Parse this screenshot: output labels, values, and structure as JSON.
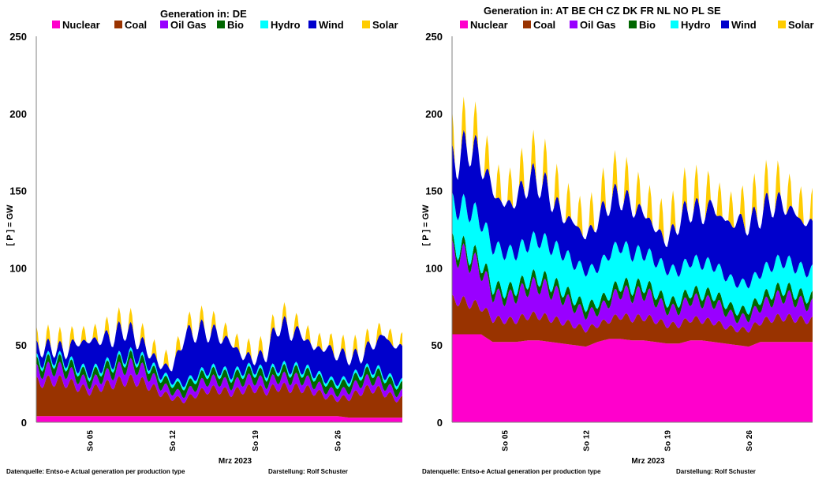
{
  "charts": [
    {
      "title": "Generation in: DE",
      "ylabel": "[ P ] = GW",
      "xlabel": "Mrz 2023",
      "xticks": [
        "So 05",
        "So 12",
        "So 19",
        "So 26"
      ],
      "footer_source": "Datenquelle: Entso-e  Actual generation per production type",
      "footer_author": "Darstellung:  Rolf Schuster"
    },
    {
      "title": "Generation in: AT   BE   CH   CZ   DK   FR   NL   NO   PL   SE",
      "ylabel": "[ P ] = GW",
      "xlabel": "Mrz 2023",
      "xticks": [
        "So 05",
        "So 12",
        "So 19",
        "So 26"
      ],
      "footer_source": "Datenquelle: Entso-e  Actual generation per production type",
      "footer_author": "Darstellung:  Rolf Schuster"
    }
  ],
  "chart_data": [
    {
      "type": "area",
      "stacked": true,
      "title": "Generation in: DE",
      "ylabel": "[ P ] = GW",
      "xlabel": "Mrz 2023",
      "ylim": [
        0,
        250
      ],
      "yticks": [
        0,
        50,
        100,
        150,
        200,
        250
      ],
      "x_days": [
        1,
        2,
        3,
        4,
        5,
        6,
        7,
        8,
        9,
        10,
        11,
        12,
        13,
        14,
        15,
        16,
        17,
        18,
        19,
        20,
        21,
        22,
        23,
        24,
        25,
        26,
        27,
        28,
        29,
        30,
        31
      ],
      "x_tick_days": [
        5,
        12,
        19,
        26
      ],
      "x_tick_labels": [
        "So 05",
        "So 12",
        "So 19",
        "So 26"
      ],
      "grid": false,
      "legend": "top",
      "series": [
        {
          "name": "Nuclear",
          "color": "#ff00cc",
          "values": [
            4,
            4,
            4,
            4,
            4,
            4,
            4,
            4,
            4,
            4,
            4,
            4,
            4,
            4,
            4,
            4,
            4,
            4,
            4,
            4,
            4,
            4,
            4,
            4,
            4,
            4,
            3,
            3,
            3,
            3,
            3
          ]
        },
        {
          "name": "Coal",
          "color": "#993300",
          "values": [
            22,
            23,
            22,
            19,
            16,
            19,
            21,
            23,
            23,
            20,
            15,
            12,
            10,
            14,
            17,
            17,
            15,
            17,
            18,
            16,
            19,
            18,
            18,
            16,
            13,
            11,
            13,
            17,
            19,
            16,
            12
          ]
        },
        {
          "name": "Oil Gas",
          "color": "#9900ff",
          "values": [
            7,
            8,
            7,
            6,
            5,
            6,
            7,
            9,
            9,
            7,
            5,
            4,
            4,
            5,
            6,
            6,
            5,
            6,
            6,
            5,
            6,
            6,
            6,
            5,
            4,
            4,
            5,
            6,
            6,
            5,
            4
          ]
        },
        {
          "name": "Bio",
          "color": "#006600",
          "values": [
            5,
            5,
            5,
            5,
            5,
            5,
            5,
            5,
            5,
            5,
            5,
            5,
            5,
            5,
            5,
            5,
            5,
            5,
            5,
            5,
            5,
            5,
            5,
            5,
            5,
            5,
            5,
            5,
            5,
            5,
            5
          ]
        },
        {
          "name": "Hydro",
          "color": "#00ffff",
          "values": [
            2,
            2,
            2,
            2,
            2,
            2,
            2,
            2,
            2,
            2,
            2,
            2,
            2,
            2,
            2,
            2,
            2,
            2,
            2,
            2,
            2,
            2,
            2,
            2,
            2,
            2,
            2,
            2,
            2,
            2,
            2
          ]
        },
        {
          "name": "Wind",
          "color": "#0000cc",
          "values": [
            8,
            6,
            6,
            16,
            20,
            18,
            16,
            18,
            11,
            8,
            6,
            8,
            30,
            29,
            25,
            22,
            20,
            9,
            6,
            12,
            28,
            24,
            22,
            16,
            20,
            18,
            14,
            10,
            16,
            25,
            22
          ]
        },
        {
          "name": "Solar",
          "color": "#ffcc00",
          "values": [
            5,
            5,
            5,
            5,
            5,
            5,
            5,
            5,
            5,
            5,
            5,
            5,
            5,
            5,
            5,
            5,
            5,
            5,
            5,
            5,
            5,
            5,
            5,
            5,
            5,
            5,
            5,
            5,
            5,
            5,
            5
          ]
        }
      ]
    },
    {
      "type": "area",
      "stacked": true,
      "title": "Generation in: AT   BE   CH   CZ   DK   FR   NL   NO   PL   SE",
      "ylabel": "[ P ] = GW",
      "xlabel": "Mrz 2023",
      "ylim": [
        0,
        250
      ],
      "yticks": [
        0,
        50,
        100,
        150,
        200,
        250
      ],
      "x_days": [
        1,
        2,
        3,
        4,
        5,
        6,
        7,
        8,
        9,
        10,
        11,
        12,
        13,
        14,
        15,
        16,
        17,
        18,
        19,
        20,
        21,
        22,
        23,
        24,
        25,
        26,
        27,
        28,
        29,
        30,
        31
      ],
      "x_tick_days": [
        5,
        12,
        19,
        26
      ],
      "x_tick_labels": [
        "So 05",
        "So 12",
        "So 19",
        "So 26"
      ],
      "grid": false,
      "legend": "top",
      "series": [
        {
          "name": "Nuclear",
          "color": "#ff00cc",
          "values": [
            57,
            57,
            57,
            52,
            52,
            52,
            53,
            53,
            52,
            51,
            50,
            49,
            52,
            54,
            54,
            53,
            53,
            52,
            51,
            51,
            53,
            53,
            52,
            51,
            50,
            49,
            52,
            52,
            52,
            52,
            52
          ]
        },
        {
          "name": "Coal",
          "color": "#993300",
          "values": [
            22,
            20,
            18,
            15,
            14,
            14,
            16,
            16,
            15,
            14,
            13,
            11,
            11,
            12,
            15,
            14,
            15,
            14,
            12,
            12,
            14,
            13,
            13,
            11,
            10,
            11,
            13,
            15,
            16,
            15,
            14
          ]
        },
        {
          "name": "Oil Gas",
          "color": "#9900ff",
          "values": [
            30,
            28,
            24,
            16,
            14,
            16,
            18,
            20,
            18,
            16,
            12,
            10,
            9,
            12,
            16,
            15,
            16,
            13,
            10,
            10,
            13,
            12,
            13,
            10,
            7,
            8,
            10,
            12,
            14,
            12,
            10
          ]
        },
        {
          "name": "Bio",
          "color": "#006600",
          "values": [
            5,
            5,
            5,
            5,
            5,
            5,
            5,
            5,
            5,
            5,
            5,
            5,
            5,
            5,
            5,
            5,
            5,
            5,
            5,
            5,
            5,
            5,
            5,
            5,
            5,
            5,
            5,
            5,
            5,
            5,
            5
          ]
        },
        {
          "name": "Hydro",
          "color": "#00ffff",
          "values": [
            26,
            28,
            27,
            26,
            25,
            23,
            24,
            25,
            24,
            24,
            23,
            23,
            23,
            26,
            25,
            22,
            21,
            21,
            21,
            20,
            20,
            20,
            19,
            18,
            18,
            17,
            17,
            18,
            18,
            17,
            17
          ]
        },
        {
          "name": "Wind",
          "color": "#0000cc",
          "values": [
            30,
            42,
            38,
            36,
            30,
            34,
            40,
            38,
            32,
            24,
            26,
            22,
            30,
            34,
            32,
            30,
            26,
            20,
            18,
            32,
            34,
            32,
            38,
            34,
            40,
            38,
            38,
            40,
            36,
            34,
            30
          ]
        },
        {
          "name": "Solar",
          "color": "#ffcc00",
          "values": [
            12,
            12,
            12,
            12,
            12,
            12,
            12,
            12,
            12,
            12,
            12,
            12,
            12,
            12,
            12,
            12,
            12,
            12,
            12,
            12,
            12,
            12,
            12,
            12,
            12,
            12,
            12,
            12,
            12,
            12,
            12
          ]
        }
      ]
    }
  ]
}
